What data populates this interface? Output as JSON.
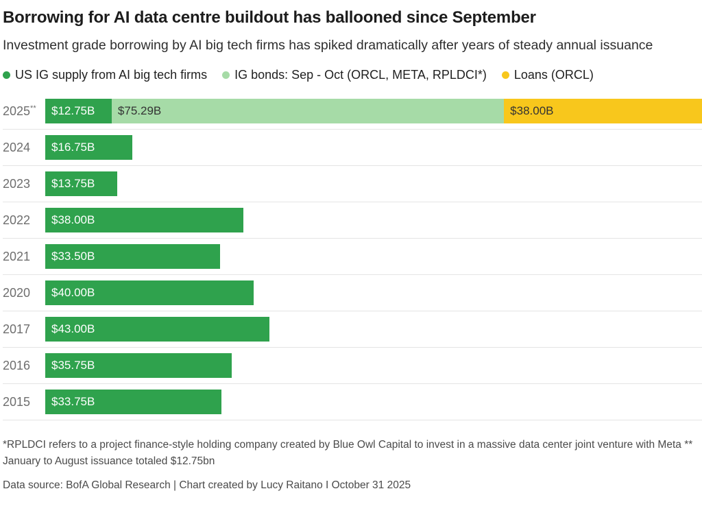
{
  "title": "Borrowing for AI data centre buildout has ballooned since September",
  "subtitle": "Investment grade borrowing by AI big tech firms has spiked dramatically after years of steady annual issuance",
  "footnote": "*RPLDCI refers to a project finance-style holding company created by Blue Owl Capital to invest in a massive data center joint venture with Meta ** January to August issuance totaled $12.75bn",
  "source": "Data source: BofA Global Research | Chart created by Lucy Raitano I October 31 2025",
  "chart_data": {
    "type": "bar",
    "orientation": "horizontal",
    "stacked": true,
    "xlim": [
      0,
      126.04
    ],
    "grid": "row-separators",
    "legend_position": "top",
    "legend_order": [
      "ig_supply",
      "ig_bonds",
      "loans"
    ],
    "series_meta": {
      "ig_supply": {
        "name": "US IG supply from AI big tech firms",
        "color": "#2fa24d",
        "label_color": "#ffffff"
      },
      "ig_bonds": {
        "name": "IG bonds: Sep - Oct (ORCL, META, RPLDCI*)",
        "color": "#a6dba7",
        "label_color": "#333333"
      },
      "loans": {
        "name": "Loans (ORCL)",
        "color": "#f8c71c",
        "label_color": "#333333"
      }
    },
    "rows": [
      {
        "category": "2025",
        "suffix": "**",
        "segments": [
          {
            "series": "ig_supply",
            "value": 12.75,
            "label": "$12.75B"
          },
          {
            "series": "ig_bonds",
            "value": 75.29,
            "label": "$75.29B"
          },
          {
            "series": "loans",
            "value": 38.0,
            "label": "$38.00B"
          }
        ]
      },
      {
        "category": "2024",
        "segments": [
          {
            "series": "ig_supply",
            "value": 16.75,
            "label": "$16.75B"
          }
        ]
      },
      {
        "category": "2023",
        "segments": [
          {
            "series": "ig_supply",
            "value": 13.75,
            "label": "$13.75B"
          }
        ]
      },
      {
        "category": "2022",
        "segments": [
          {
            "series": "ig_supply",
            "value": 38.0,
            "label": "$38.00B"
          }
        ]
      },
      {
        "category": "2021",
        "segments": [
          {
            "series": "ig_supply",
            "value": 33.5,
            "label": "$33.50B"
          }
        ]
      },
      {
        "category": "2020",
        "segments": [
          {
            "series": "ig_supply",
            "value": 40.0,
            "label": "$40.00B"
          }
        ]
      },
      {
        "category": "2017",
        "segments": [
          {
            "series": "ig_supply",
            "value": 43.0,
            "label": "$43.00B"
          }
        ]
      },
      {
        "category": "2016",
        "segments": [
          {
            "series": "ig_supply",
            "value": 35.75,
            "label": "$35.75B"
          }
        ]
      },
      {
        "category": "2015",
        "segments": [
          {
            "series": "ig_supply",
            "value": 33.75,
            "label": "$33.75B"
          }
        ]
      }
    ]
  }
}
